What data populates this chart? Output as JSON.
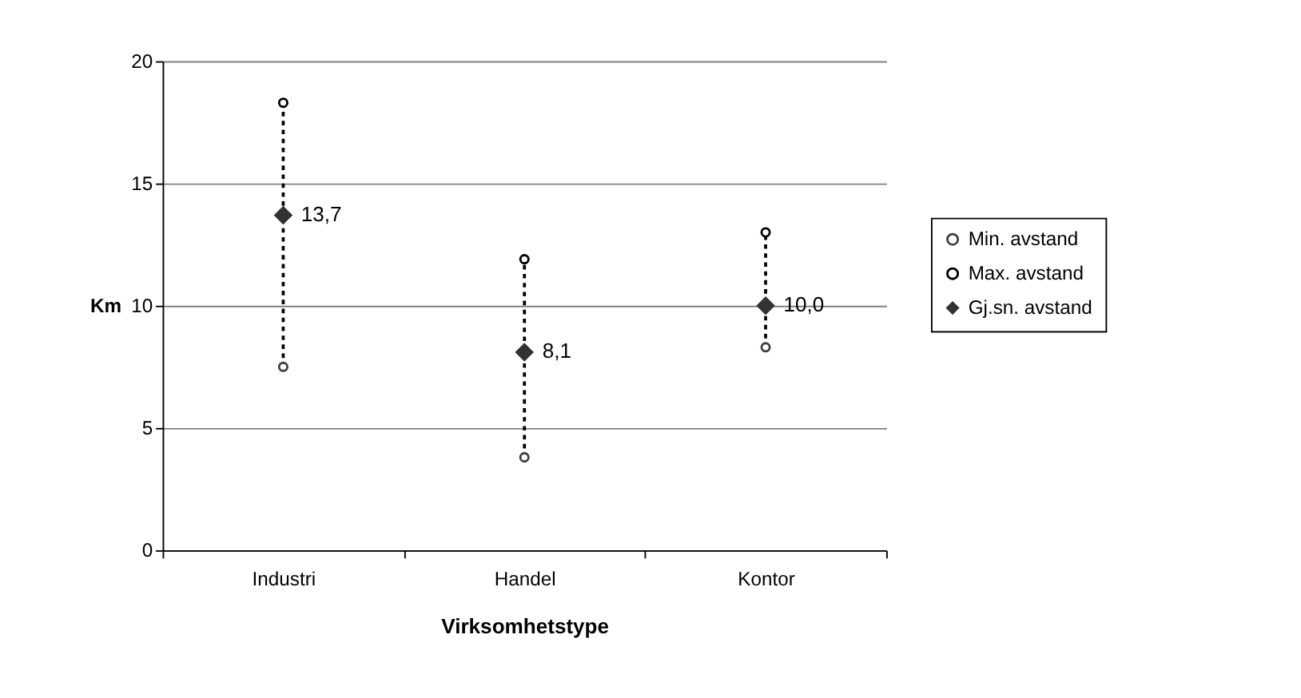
{
  "chart_data": {
    "type": "scatter",
    "xlabel": "Virksomhetstype",
    "ylabel": "Km",
    "categories": [
      "Industri",
      "Handel",
      "Kontor"
    ],
    "series": [
      {
        "name": "Min. avstand",
        "color": "#404040",
        "marker": "circle",
        "values": [
          7.5,
          3.8,
          8.3
        ]
      },
      {
        "name": "Max. avstand",
        "color": "#000000",
        "marker": "circle",
        "values": [
          18.3,
          11.9,
          13.0
        ]
      },
      {
        "name": "Gj.sn. avstand",
        "color": "#333333",
        "marker": "diamond",
        "values": [
          13.7,
          8.1,
          10.0
        ],
        "value_labels": [
          "13,7",
          "8,1",
          "10,0"
        ]
      }
    ],
    "ylim": [
      0,
      20
    ],
    "yticks": [
      0,
      5,
      10,
      15,
      20
    ],
    "grid": "y",
    "legend": "right"
  }
}
